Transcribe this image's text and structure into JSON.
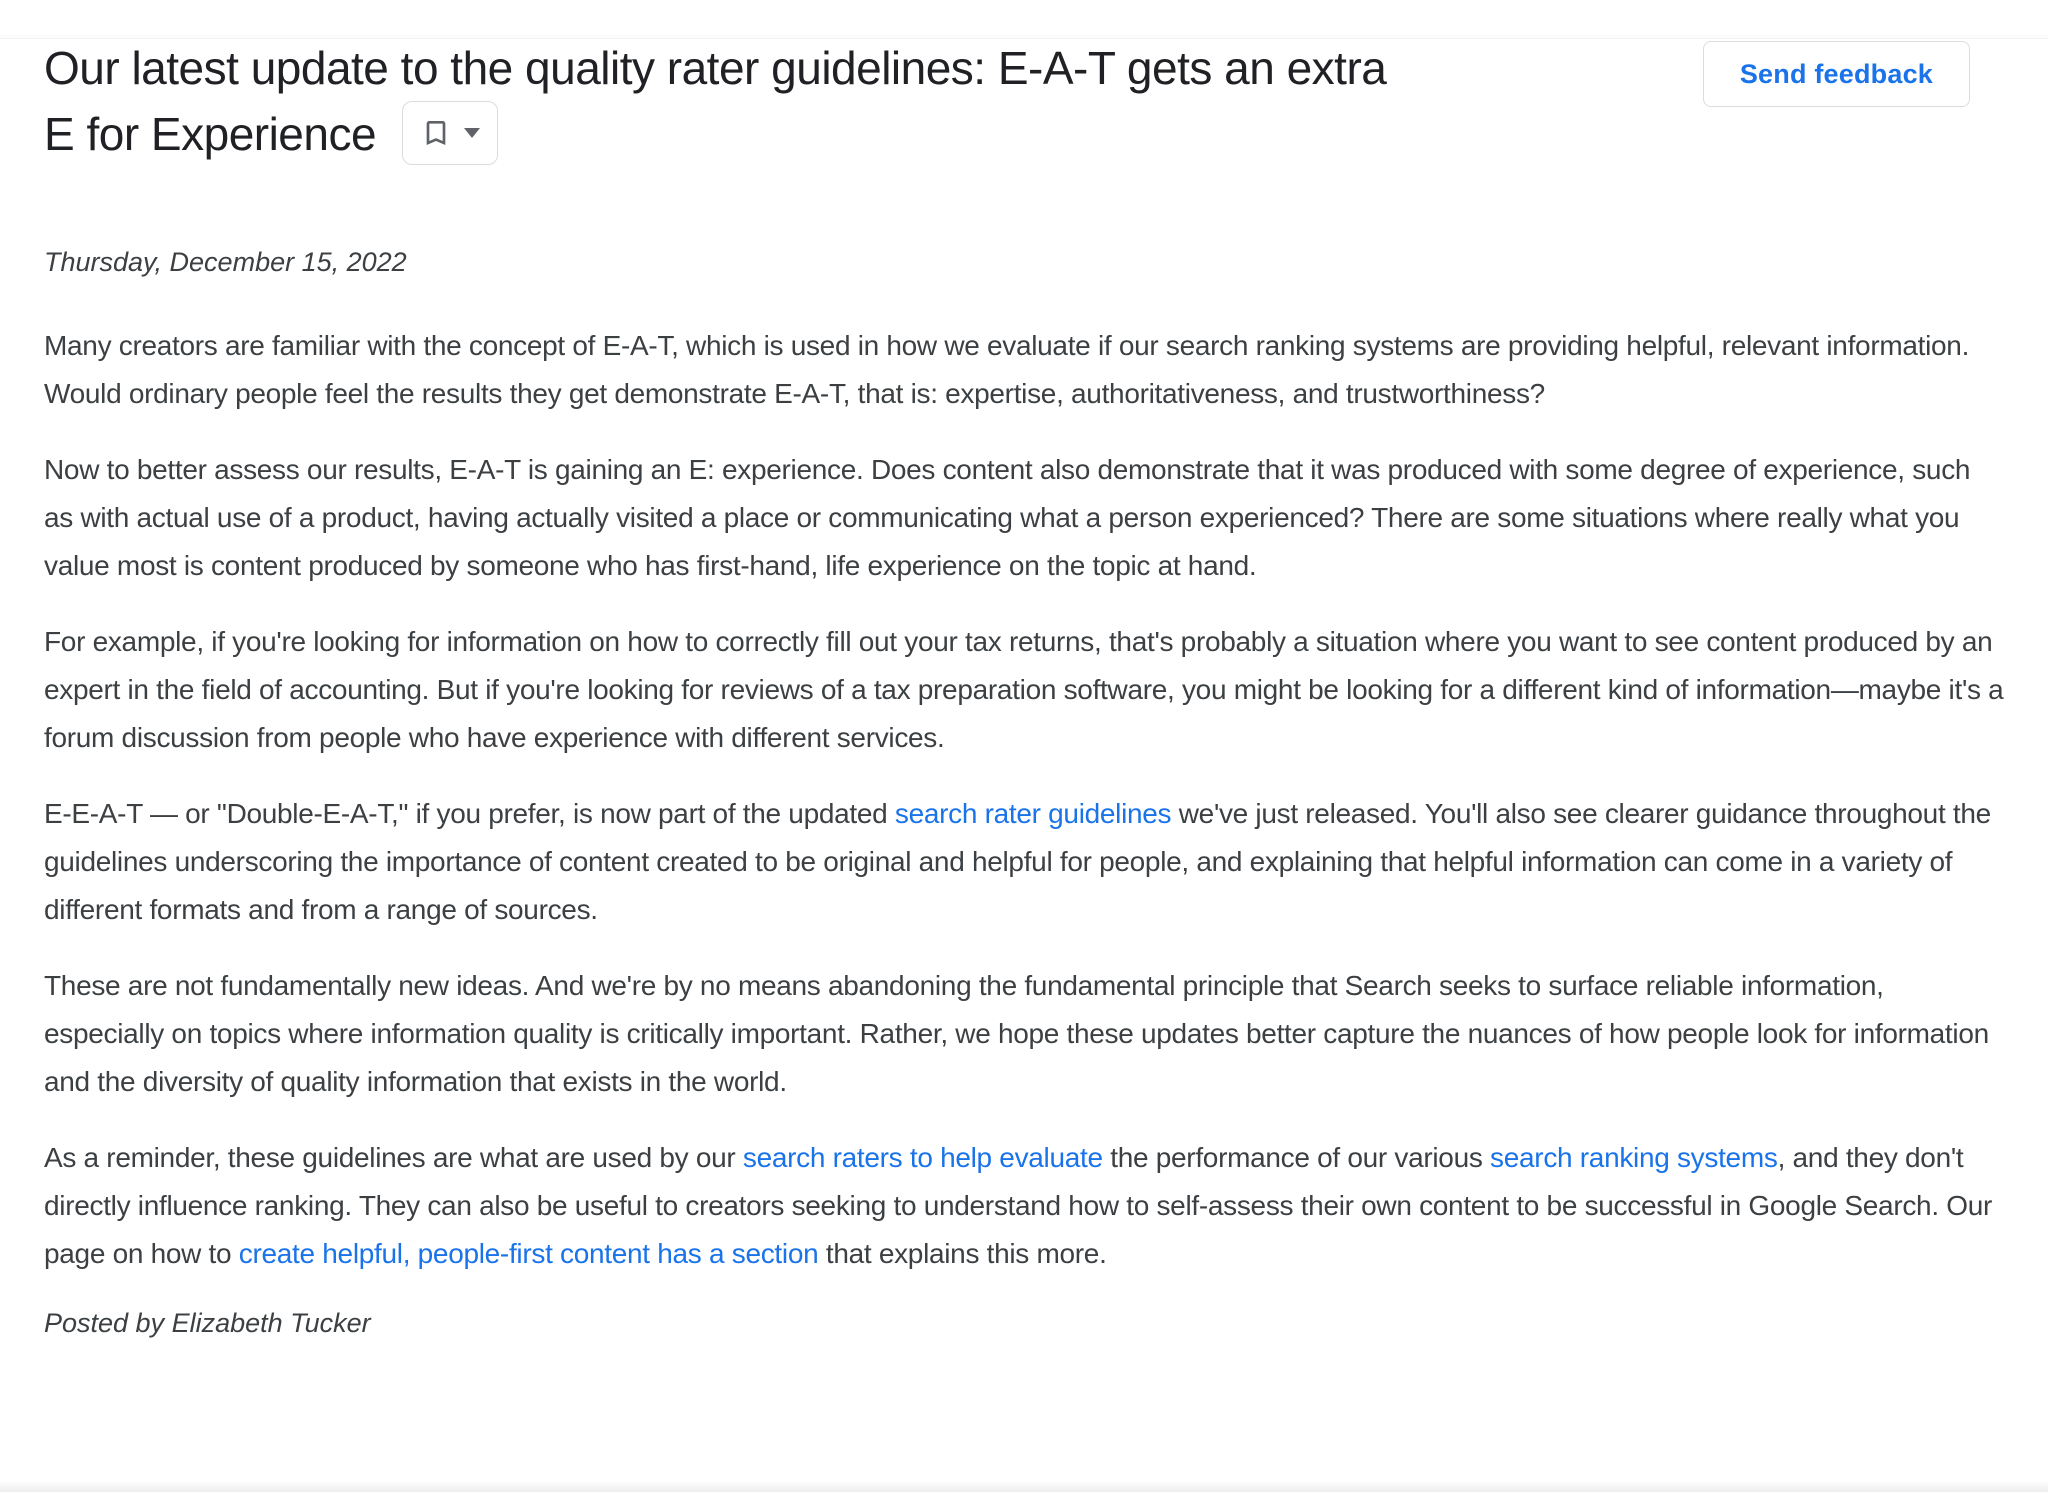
{
  "header": {
    "send_feedback_label": "Send feedback",
    "bookmark_icon": "bookmark-outline-icon",
    "dropdown_icon": "caret-down-icon"
  },
  "colors": {
    "link_blue": "#1a73e8",
    "title_text": "#202124",
    "body_text": "#3c4043",
    "button_border": "#dadce0",
    "icon_gray": "#5f6368"
  },
  "article": {
    "title": "Our latest update to the quality rater guidelines: E-A-T gets an extra E for Experience",
    "date": "Thursday, December 15, 2022",
    "byline": "Posted by Elizabeth Tucker",
    "paragraphs": [
      {
        "segments": [
          {
            "text": "Many creators are familiar with the concept of E-A-T, which is used in how we evaluate if our search ranking systems are providing helpful, relevant information. Would ordinary people feel the results they get demonstrate E-A-T, that is: expertise, authoritativeness, and trustworthiness?",
            "link": false
          }
        ]
      },
      {
        "segments": [
          {
            "text": "Now to better assess our results, E-A-T is gaining an E: experience. Does content also demonstrate that it was produced with some degree of experience, such as with actual use of a product, having actually visited a place or communicating what a person experienced? There are some situations where really what you value most is content produced by someone who has first-hand, life experience on the topic at hand.",
            "link": false
          }
        ]
      },
      {
        "segments": [
          {
            "text": "For example, if you're looking for information on how to correctly fill out your tax returns, that's probably a situation where you want to see content produced by an expert in the field of accounting. But if you're looking for reviews of a tax preparation software, you might be looking for a different kind of information—maybe it's a forum discussion from people who have experience with different services.",
            "link": false
          }
        ]
      },
      {
        "segments": [
          {
            "text": "E-E-A-T — or \"Double-E-A-T,\" if you prefer, is now part of the updated ",
            "link": false
          },
          {
            "text": "search rater guidelines",
            "link": true
          },
          {
            "text": " we've just released. You'll also see clearer guidance throughout the guidelines underscoring the importance of content created to be original and helpful for people, and explaining that helpful information can come in a variety of different formats and from a range of sources.",
            "link": false
          }
        ]
      },
      {
        "segments": [
          {
            "text": "These are not fundamentally new ideas. And we're by no means abandoning the fundamental principle that Search seeks to surface reliable information, especially on topics where information quality is critically important. Rather, we hope these updates better capture the nuances of how people look for information and the diversity of quality information that exists in the world.",
            "link": false
          }
        ]
      },
      {
        "segments": [
          {
            "text": "As a reminder, these guidelines are what are used by our ",
            "link": false
          },
          {
            "text": "search raters to help evaluate",
            "link": true
          },
          {
            "text": " the performance of our various ",
            "link": false
          },
          {
            "text": "search ranking systems",
            "link": true
          },
          {
            "text": ", and they don't directly influence ranking. They can also be useful to creators seeking to understand how to self-assess their own content to be successful in Google Search. Our page on how to ",
            "link": false
          },
          {
            "text": "create helpful, people-first content has a section",
            "link": true
          },
          {
            "text": " that explains this more.",
            "link": false
          }
        ]
      }
    ]
  }
}
